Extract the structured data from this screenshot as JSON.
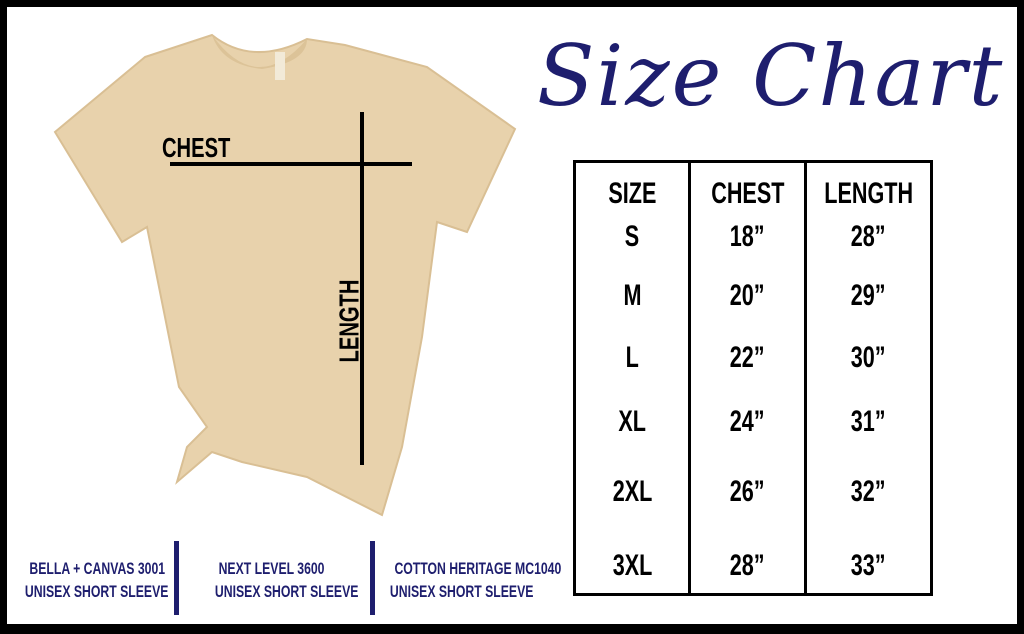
{
  "title": "Size Chart",
  "diagram": {
    "chest_label": "CHEST",
    "length_label": "LENGTH"
  },
  "table": {
    "headers": [
      "SIZE",
      "CHEST",
      "LENGTH"
    ],
    "rows": [
      {
        "size": "S",
        "chest": "18”",
        "length": "28”"
      },
      {
        "size": "M",
        "chest": "20”",
        "length": "29”"
      },
      {
        "size": "L",
        "chest": "22”",
        "length": "30”"
      },
      {
        "size": "XL",
        "chest": "24”",
        "length": "31”"
      },
      {
        "size": "2XL",
        "chest": "26”",
        "length": "32”"
      },
      {
        "size": "3XL",
        "chest": "28”",
        "length": "33”"
      }
    ]
  },
  "brands": [
    {
      "line1": "BELLA + CANVAS 3001",
      "line2": "UNISEX SHORT SLEEVE"
    },
    {
      "line1": "NEXT LEVEL 3600",
      "line2": "UNISEX SHORT SLEEVE"
    },
    {
      "line1": "COTTON HERITAGE MC1040",
      "line2": "UNISEX SHORT SLEEVE"
    }
  ],
  "colors": {
    "accent": "#1e1e6e",
    "shirt": "#e8d2ac",
    "border": "#000000"
  }
}
